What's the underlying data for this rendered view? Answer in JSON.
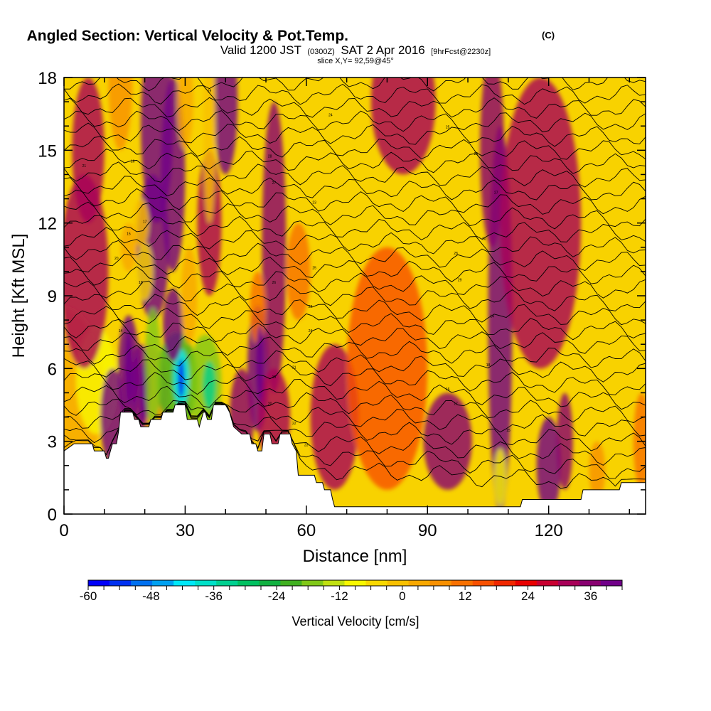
{
  "header": {
    "title": "Angled Section: Vertical Velocity & Pot.Temp.",
    "title_unit": "(C)",
    "valid_prefix": "Valid 1200 JST",
    "valid_utc": "(0300Z)",
    "valid_date": "SAT 2 Apr 2016",
    "forecast": "[9hrFcst@2230z]",
    "slice": "slice X,Y= 92,59@45°"
  },
  "chart_data": {
    "type": "heatmap",
    "xlabel": "Distance [nm]",
    "ylabel": "Height [Kft MSL]",
    "xlim": [
      0,
      144
    ],
    "ylim": [
      0,
      18
    ],
    "x_ticks": [
      0,
      30,
      60,
      90,
      120
    ],
    "x_tick_labels": [
      "0",
      "30",
      "60",
      "90",
      "120"
    ],
    "y_ticks": [
      0,
      3,
      6,
      9,
      12,
      15,
      18
    ],
    "y_tick_labels": [
      "0",
      "3",
      "6",
      "9",
      "12",
      "15",
      "18"
    ],
    "colorbar": {
      "title": "Vertical Velocity [cm/s]",
      "min": -60,
      "max": 42,
      "step": 3,
      "tick_values": [
        -60,
        -48,
        -36,
        -24,
        -12,
        0,
        12,
        24,
        36
      ],
      "tick_labels": [
        "-60",
        "-48",
        "-36",
        "-24",
        "-12",
        "0",
        "12",
        "24",
        "36"
      ],
      "colors": [
        "#0000f8",
        "#0030f0",
        "#0070f0",
        "#00a0f0",
        "#00e8f8",
        "#00e0c8",
        "#00d090",
        "#00c060",
        "#10b040",
        "#40b020",
        "#80c818",
        "#c0e010",
        "#f8f800",
        "#f8d800",
        "#f8c000",
        "#f8a800",
        "#f89000",
        "#f87000",
        "#f85000",
        "#f02800",
        "#e80000",
        "#c80030",
        "#a80058",
        "#880070",
        "#700088"
      ]
    },
    "terrain": [
      [
        0,
        2.6
      ],
      [
        2.5,
        2.9
      ],
      [
        7,
        2.9
      ],
      [
        7.5,
        2.6
      ],
      [
        10,
        2.6
      ],
      [
        10.5,
        2.3
      ],
      [
        11,
        2.3
      ],
      [
        11.5,
        2.6
      ],
      [
        12,
        2.9
      ],
      [
        13,
        2.9
      ],
      [
        13.5,
        3.4
      ],
      [
        14,
        4.2
      ],
      [
        17,
        4.2
      ],
      [
        17.5,
        3.9
      ],
      [
        18.5,
        3.9
      ],
      [
        19,
        3.6
      ],
      [
        21,
        3.6
      ],
      [
        21.5,
        3.9
      ],
      [
        24,
        3.9
      ],
      [
        24.5,
        4.2
      ],
      [
        27,
        4.2
      ],
      [
        27.5,
        4.5
      ],
      [
        30,
        4.5
      ],
      [
        30.5,
        3.9
      ],
      [
        33,
        3.9
      ],
      [
        33.5,
        3.6
      ],
      [
        34,
        3.9
      ],
      [
        34.5,
        4.2
      ],
      [
        35,
        4.2
      ],
      [
        35.5,
        3.9
      ],
      [
        36.5,
        3.9
      ],
      [
        37,
        4.5
      ],
      [
        40,
        4.5
      ],
      [
        41,
        4.2
      ],
      [
        42,
        3.6
      ],
      [
        44,
        3.3
      ],
      [
        46,
        3.3
      ],
      [
        46.5,
        2.9
      ],
      [
        47.5,
        2.9
      ],
      [
        48,
        2.6
      ],
      [
        49,
        2.6
      ],
      [
        49.5,
        3.3
      ],
      [
        51,
        3.3
      ],
      [
        51.5,
        2.9
      ],
      [
        53,
        2.9
      ],
      [
        53.5,
        3.3
      ],
      [
        56,
        3.3
      ],
      [
        56.5,
        2.9
      ],
      [
        57.5,
        2.6
      ],
      [
        58,
        1.6
      ],
      [
        62,
        1.6
      ],
      [
        62.5,
        1.3
      ],
      [
        64,
        1.3
      ],
      [
        64.5,
        1.0
      ],
      [
        66,
        1.0
      ],
      [
        66.5,
        0.6
      ],
      [
        67,
        0.3
      ],
      [
        113,
        0.3
      ],
      [
        113.5,
        0.6
      ],
      [
        128,
        0.6
      ],
      [
        128.5,
        1.0
      ],
      [
        137.5,
        1.0
      ],
      [
        138,
        1.3
      ],
      [
        144,
        1.3
      ]
    ],
    "isentrope_labels": [
      "14",
      "15",
      "16",
      "17",
      "18",
      "19",
      "20",
      "21",
      "22",
      "23",
      "24",
      "25",
      "26",
      "27",
      "28",
      "29",
      "30"
    ],
    "series_count": 30
  }
}
